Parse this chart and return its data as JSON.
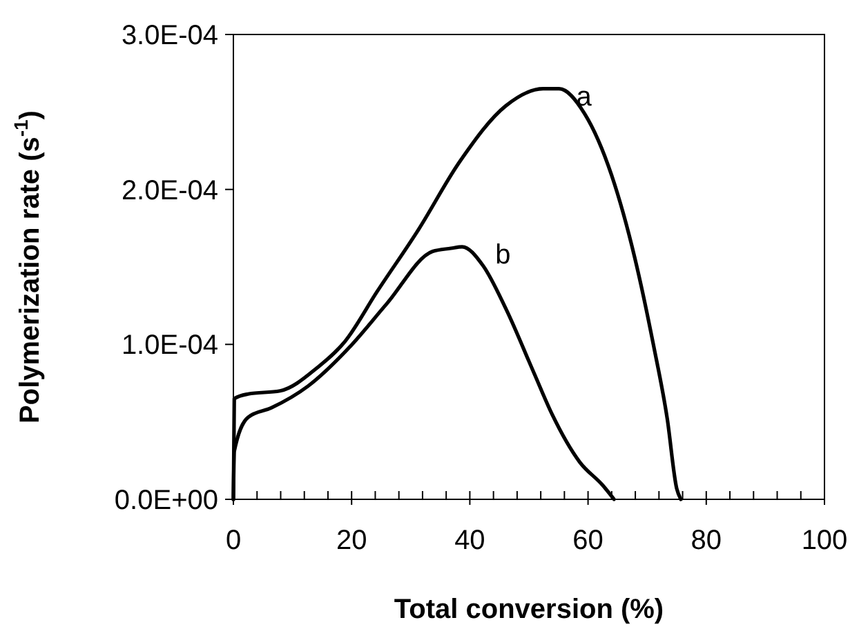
{
  "chart_data": {
    "type": "line",
    "xlabel": "Total conversion (%)",
    "ylabel": "Polymerization rate (s$^{-1}$)",
    "xlim": [
      0,
      100
    ],
    "ylim": [
      0,
      0.0003
    ],
    "xticks": [
      0,
      {
        "value": 4,
        "label": null
      },
      {
        "value": 8,
        "label": null
      },
      {
        "value": 12,
        "label": null
      },
      {
        "value": 16,
        "label": null
      },
      20,
      {
        "value": 24,
        "label": null
      },
      {
        "value": 28,
        "label": null
      },
      {
        "value": 32,
        "label": null
      },
      {
        "value": 36,
        "label": null
      },
      40,
      {
        "value": 44,
        "label": null
      },
      {
        "value": 48,
        "label": null
      },
      {
        "value": 52,
        "label": null
      },
      {
        "value": 56,
        "label": null
      },
      60,
      {
        "value": 64,
        "label": null
      },
      {
        "value": 68,
        "label": null
      },
      {
        "value": 72,
        "label": null
      },
      {
        "value": 76,
        "label": null
      },
      80,
      {
        "value": 84,
        "label": null
      },
      {
        "value": 88,
        "label": null
      },
      {
        "value": 92,
        "label": null
      },
      {
        "value": 96,
        "label": null
      },
      100
    ],
    "yticks": [
      {
        "value": 0,
        "label": "0.0E+00"
      },
      {
        "value": 0.0001,
        "label": "1.0E-04"
      },
      {
        "value": 0.0002,
        "label": "2.0E-04"
      },
      {
        "value": 0.0003,
        "label": "3.0E-04"
      }
    ],
    "grid": false,
    "marker": "none",
    "line_style": "solid",
    "series": [
      {
        "name": "a",
        "color": "#000000",
        "x": [
          0,
          0.15,
          2.5,
          7.9,
          14.2,
          18.9,
          24.3,
          31.3,
          38.3,
          46.1,
          52.4,
          55.1,
          59.4,
          64,
          67.9,
          71.1,
          73.4,
          75,
          75.7
        ],
        "values": [
          0,
          6.5e-05,
          6.8e-05,
          7e-05,
          8.5e-05,
          0.000102,
          0.000134,
          0.000174,
          0.000218,
          0.000254,
          0.000265,
          0.000265,
          0.000249,
          0.000209,
          0.000156,
          9.9e-05,
          5.2e-05,
          7e-06,
          0
        ]
      },
      {
        "name": "b",
        "color": "#000000",
        "x": [
          0,
          0.15,
          2.5,
          6.4,
          12.6,
          19.6,
          25.9,
          33.7,
          36.8,
          38.7,
          42.2,
          46.1,
          50.8,
          53.9,
          58.6,
          62.5,
          64.4
        ],
        "values": [
          0,
          3.1e-05,
          5.3e-05,
          5.9e-05,
          7.3e-05,
          9.8e-05,
          0.000126,
          0.00016,
          0.000162,
          0.000163,
          0.000151,
          0.000123,
          8.2e-05,
          5.5e-05,
          2.4e-05,
          9e-06,
          0
        ]
      }
    ]
  }
}
